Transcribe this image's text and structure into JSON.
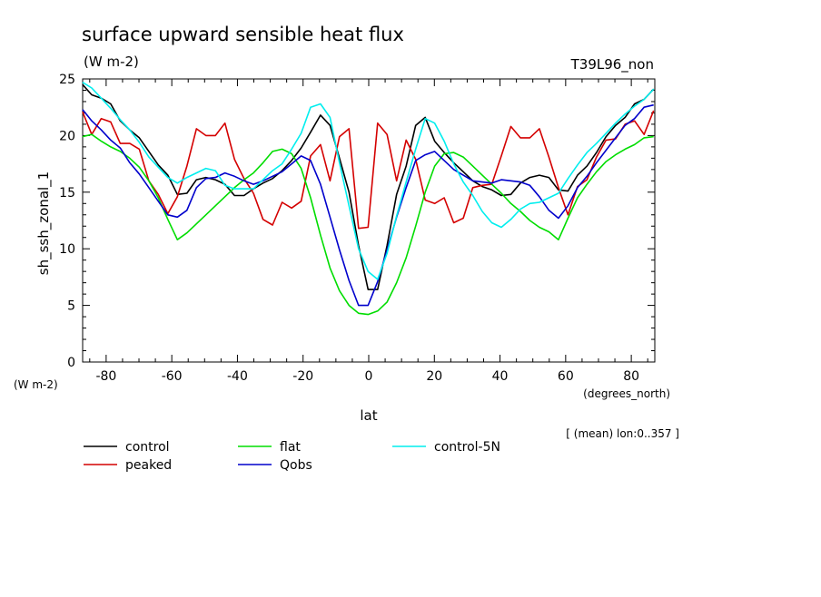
{
  "chart_data": {
    "type": "line",
    "title": "surface upward sensible heat flux",
    "units": "(W m-2)",
    "run_label": "T39L96_non",
    "ylabel": "sh_ssh_zonal_1",
    "yunits": "(W m-2)",
    "xlabel": "lat",
    "xunits": "(degrees_north)",
    "note": "[ (mean) lon:0..357 ]",
    "xlim": [
      -87.16,
      87.16
    ],
    "ylim": [
      0,
      25
    ],
    "xticks": [
      "-80",
      "-60",
      "-40",
      "-20",
      "0",
      "20",
      "40",
      "80"
    ],
    "xtick_values": [
      -80,
      -60,
      -40,
      -20,
      0,
      20,
      40,
      80
    ],
    "xticks_all": [
      -80,
      -60,
      -40,
      -20,
      0,
      20,
      40,
      60,
      80
    ],
    "xtick_labels": [
      "-80",
      "-60",
      "-40",
      "-20",
      "0",
      "20",
      "40",
      "60",
      "80"
    ],
    "yticks": [
      0,
      5,
      10,
      15,
      20,
      25
    ],
    "ytick_labels": [
      "0",
      "5",
      "10",
      "15",
      "20",
      "25"
    ],
    "x": [
      -87.2,
      -84.4,
      -81.5,
      -78.6,
      -75.7,
      -72.8,
      -69.9,
      -67.0,
      -64.1,
      -61.2,
      -58.3,
      -55.4,
      -52.5,
      -49.6,
      -46.7,
      -43.8,
      -40.9,
      -38.0,
      -35.1,
      -32.2,
      -29.3,
      -26.4,
      -23.5,
      -20.6,
      -17.7,
      -14.7,
      -11.8,
      -8.9,
      -6.0,
      -3.1,
      -0.2,
      2.7,
      5.6,
      8.5,
      11.4,
      14.3,
      17.2,
      20.1,
      23.0,
      25.9,
      28.8,
      31.7,
      34.6,
      37.5,
      40.4,
      43.3,
      46.2,
      49.1,
      52.0,
      54.9,
      57.8,
      60.7,
      63.6,
      66.5,
      69.4,
      72.3,
      75.2,
      78.1,
      81.0,
      83.9,
      86.8
    ],
    "series": [
      {
        "name": "control",
        "color": "#000000",
        "values": [
          24.5,
          23.6,
          23.3,
          22.8,
          21.3,
          20.5,
          19.8,
          18.6,
          17.4,
          16.5,
          14.8,
          14.9,
          16.1,
          16.3,
          16.1,
          15.7,
          14.7,
          14.7,
          15.3,
          15.8,
          16.2,
          16.9,
          17.8,
          18.9,
          20.3,
          21.8,
          20.9,
          18.0,
          15.0,
          10.3,
          6.4,
          6.4,
          10.3,
          14.8,
          17.3,
          20.9,
          21.6,
          19.5,
          18.5,
          17.6,
          16.8,
          16.0,
          15.5,
          15.2,
          14.7,
          14.8,
          15.8,
          16.3,
          16.5,
          16.3,
          15.2,
          15.1,
          16.5,
          17.3,
          18.5,
          19.9,
          20.9,
          21.6,
          22.8,
          23.2,
          24.1
        ]
      },
      {
        "name": "peaked",
        "color": "#d40000",
        "values": [
          22.1,
          20.1,
          21.5,
          21.2,
          19.3,
          19.3,
          18.8,
          16.0,
          14.8,
          13.1,
          14.6,
          17.3,
          20.6,
          20.0,
          20.0,
          21.1,
          17.9,
          16.2,
          14.9,
          12.6,
          12.1,
          14.1,
          13.6,
          14.2,
          18.2,
          19.2,
          16.0,
          19.9,
          20.6,
          11.8,
          11.9,
          21.1,
          20.1,
          16.0,
          19.6,
          17.9,
          14.3,
          14.0,
          14.5,
          12.3,
          12.7,
          15.4,
          15.6,
          15.7,
          18.2,
          20.8,
          19.8,
          19.8,
          20.6,
          18.1,
          15.4,
          13.0,
          15.5,
          16.1,
          18.1,
          19.6,
          19.7,
          21.0,
          21.3,
          20.1,
          22.2
        ]
      },
      {
        "name": "flat",
        "color": "#00dd00",
        "values": [
          19.9,
          20.1,
          19.5,
          19.0,
          18.6,
          18.0,
          17.2,
          16.0,
          14.5,
          12.6,
          10.8,
          11.4,
          12.2,
          13.0,
          13.8,
          14.6,
          15.4,
          16.1,
          16.7,
          17.6,
          18.6,
          18.8,
          18.4,
          17.1,
          14.5,
          11.2,
          8.3,
          6.3,
          5.0,
          4.3,
          4.2,
          4.5,
          5.3,
          7.0,
          9.2,
          12.0,
          15.0,
          17.3,
          18.4,
          18.5,
          18.1,
          17.3,
          16.5,
          15.7,
          14.9,
          14.0,
          13.3,
          12.5,
          11.9,
          11.5,
          10.8,
          12.7,
          14.5,
          15.7,
          16.8,
          17.7,
          18.3,
          18.8,
          19.2,
          19.8,
          19.9
        ]
      },
      {
        "name": "Qobs",
        "color": "#0000cc",
        "values": [
          22.3,
          21.3,
          20.5,
          19.6,
          18.9,
          17.6,
          16.6,
          15.4,
          14.2,
          13.0,
          12.8,
          13.4,
          15.4,
          16.2,
          16.3,
          16.7,
          16.4,
          16.0,
          15.7,
          16.0,
          16.4,
          16.8,
          17.5,
          18.2,
          17.8,
          15.7,
          12.8,
          9.9,
          7.2,
          5.0,
          5.0,
          7.1,
          9.9,
          12.8,
          15.4,
          17.8,
          18.3,
          18.6,
          17.8,
          17.0,
          16.5,
          16.0,
          15.9,
          15.8,
          16.1,
          16.0,
          15.9,
          15.6,
          14.6,
          13.4,
          12.7,
          13.8,
          15.4,
          16.4,
          17.6,
          18.7,
          19.8,
          20.9,
          21.5,
          22.5,
          22.7
        ]
      },
      {
        "name": "control-5N",
        "color": "#00eeee",
        "values": [
          24.7,
          24.2,
          23.3,
          22.4,
          21.4,
          20.5,
          19.4,
          18.1,
          17.2,
          16.3,
          15.8,
          16.3,
          16.7,
          17.1,
          16.9,
          15.6,
          15.3,
          15.3,
          15.3,
          16.1,
          16.9,
          17.5,
          18.8,
          20.2,
          22.5,
          22.8,
          21.6,
          17.6,
          13.8,
          10.0,
          8.0,
          7.3,
          9.6,
          12.9,
          15.9,
          18.8,
          21.5,
          21.1,
          19.5,
          17.5,
          15.9,
          14.7,
          13.3,
          12.3,
          11.9,
          12.6,
          13.5,
          14.0,
          14.1,
          14.5,
          14.9,
          16.2,
          17.4,
          18.5,
          19.3,
          20.2,
          21.1,
          21.9,
          22.6,
          23.2,
          24.1
        ]
      }
    ],
    "legend_placement": "below",
    "grid": false
  }
}
